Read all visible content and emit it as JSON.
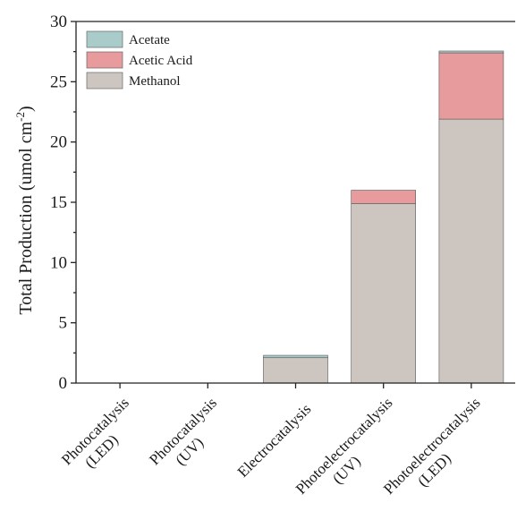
{
  "chart_data": {
    "type": "bar",
    "stacked": true,
    "categories": [
      [
        "Photocatalysis",
        "(LED)"
      ],
      [
        "Photocatalysis",
        "(UV)"
      ],
      [
        "Electrocatalysis"
      ],
      [
        "Photoelectrocatalysis",
        "(UV)"
      ],
      [
        "Photoelectrocatalysis",
        "(LED)"
      ]
    ],
    "series": [
      {
        "name": "Methanol",
        "color": "#cdc5bf",
        "values": [
          0,
          0,
          2.1,
          14.9,
          21.9
        ]
      },
      {
        "name": "Acetic Acid",
        "color": "#e89b9d",
        "values": [
          0,
          0,
          0,
          1.1,
          5.5
        ]
      },
      {
        "name": "Acetate",
        "color": "#a9cccb",
        "values": [
          0,
          0,
          0.2,
          0,
          0.15
        ]
      }
    ],
    "legend_order": [
      "Acetate",
      "Acetic Acid",
      "Methanol"
    ],
    "ylabel": "Total Production (umol cm",
    "ylabel_sup": "-2",
    "ylabel_end": ")",
    "ylim": [
      0,
      30
    ],
    "yticks": [
      0,
      5,
      10,
      15,
      20,
      25,
      30
    ],
    "grid": false,
    "legend_position": "top-left"
  }
}
